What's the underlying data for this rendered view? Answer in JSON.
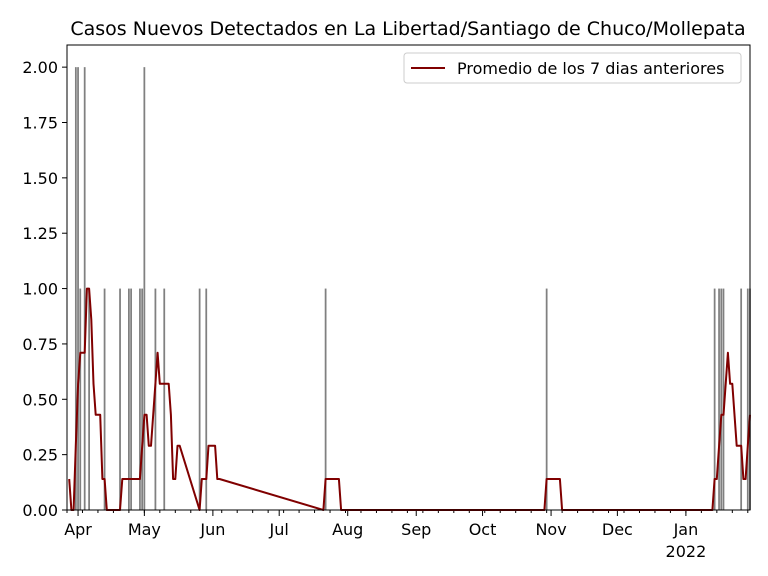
{
  "chart_data": {
    "type": "bar",
    "title": "Casos Nuevos Detectados en La Libertad/Santiago de Chuco/Mollepata",
    "xlabel": "",
    "ylabel": "",
    "ylim": [
      0,
      2.1
    ],
    "yticks": [
      "0.00",
      "0.25",
      "0.50",
      "0.75",
      "1.00",
      "1.25",
      "1.50",
      "1.75",
      "2.00"
    ],
    "xlim": [
      "2021-03-27",
      "2022-01-30"
    ],
    "xticks": [
      {
        "date": "2021-04-01",
        "label": "Apr"
      },
      {
        "date": "2021-05-01",
        "label": "May"
      },
      {
        "date": "2021-06-01",
        "label": "Jun"
      },
      {
        "date": "2021-07-01",
        "label": "Jul"
      },
      {
        "date": "2021-08-01",
        "label": "Aug"
      },
      {
        "date": "2021-09-01",
        "label": "Sep"
      },
      {
        "date": "2021-10-01",
        "label": "Oct"
      },
      {
        "date": "2021-11-01",
        "label": "Nov"
      },
      {
        "date": "2021-12-01",
        "label": "Dec"
      },
      {
        "date": "2022-01-01",
        "label": "Jan",
        "sublabel": "2022"
      }
    ],
    "legend_position": "top-right",
    "grid": false,
    "colors": {
      "bars": "#808080",
      "line": "#800000"
    },
    "series": [
      {
        "type": "bar",
        "x": [
          "2021-03-31",
          "2021-04-01",
          "2021-04-02",
          "2021-04-04",
          "2021-04-06",
          "2021-04-13",
          "2021-04-20",
          "2021-04-24",
          "2021-04-25",
          "2021-04-29",
          "2021-04-30",
          "2021-05-01",
          "2021-05-06",
          "2021-05-10",
          "2021-05-26",
          "2021-05-29",
          "2021-07-22",
          "2021-10-30",
          "2022-01-14",
          "2022-01-16",
          "2022-01-17",
          "2022-01-18",
          "2022-01-26",
          "2022-01-29",
          "2022-01-30"
        ],
        "values": [
          2,
          2,
          1,
          2,
          1,
          1,
          1,
          1,
          1,
          1,
          1,
          2,
          1,
          1,
          1,
          1,
          1,
          1,
          1,
          1,
          1,
          1,
          1,
          1,
          1
        ]
      },
      {
        "type": "line",
        "name": "Promedio de los 7 dias anteriores",
        "x": [
          "2021-03-28",
          "2021-03-29",
          "2021-03-30",
          "2021-03-31",
          "2021-04-01",
          "2021-04-02",
          "2021-04-03",
          "2021-04-04",
          "2021-04-05",
          "2021-04-06",
          "2021-04-07",
          "2021-04-08",
          "2021-04-09",
          "2021-04-10",
          "2021-04-11",
          "2021-04-12",
          "2021-04-13",
          "2021-04-14",
          "2021-04-20",
          "2021-04-21",
          "2021-04-23",
          "2021-04-24",
          "2021-04-25",
          "2021-04-26",
          "2021-04-27",
          "2021-04-28",
          "2021-04-29",
          "2021-04-30",
          "2021-05-01",
          "2021-05-02",
          "2021-05-03",
          "2021-05-04",
          "2021-05-05",
          "2021-05-06",
          "2021-05-07",
          "2021-05-08",
          "2021-05-09",
          "2021-05-10",
          "2021-05-11",
          "2021-05-12",
          "2021-05-13",
          "2021-05-14",
          "2021-05-15",
          "2021-05-16",
          "2021-05-17",
          "2021-05-26",
          "2021-05-27",
          "2021-05-28",
          "2021-05-29",
          "2021-05-30",
          "2021-05-31",
          "2021-06-01",
          "2021-06-02",
          "2021-06-03",
          "2021-06-04",
          "2021-07-21",
          "2021-07-22",
          "2021-07-28",
          "2021-07-29",
          "2021-10-29",
          "2021-10-30",
          "2021-11-05",
          "2021-11-06",
          "2022-01-13",
          "2022-01-14",
          "2022-01-15",
          "2022-01-16",
          "2022-01-17",
          "2022-01-18",
          "2022-01-19",
          "2022-01-20",
          "2022-01-21",
          "2022-01-22",
          "2022-01-23",
          "2022-01-24",
          "2022-01-25",
          "2022-01-26",
          "2022-01-27",
          "2022-01-28",
          "2022-01-29",
          "2022-01-30"
        ],
        "values": [
          0.14,
          0,
          0,
          0.29,
          0.57,
          0.71,
          0.71,
          0.71,
          1.0,
          1.0,
          0.86,
          0.57,
          0.43,
          0.43,
          0.43,
          0.14,
          0.14,
          0,
          0,
          0.14,
          0.14,
          0.14,
          0.14,
          0.14,
          0.14,
          0.14,
          0.14,
          0.29,
          0.43,
          0.43,
          0.29,
          0.29,
          0.43,
          0.57,
          0.71,
          0.57,
          0.57,
          0.57,
          0.57,
          0.57,
          0.43,
          0.14,
          0.14,
          0.29,
          0.29,
          0,
          0.14,
          0.14,
          0.14,
          0.29,
          0.29,
          0.29,
          0.29,
          0.14,
          0.14,
          0,
          0.14,
          0.14,
          0,
          0,
          0.14,
          0.14,
          0,
          0,
          0.14,
          0.14,
          0.29,
          0.43,
          0.43,
          0.57,
          0.71,
          0.57,
          0.57,
          0.43,
          0.29,
          0.29,
          0.29,
          0.14,
          0.14,
          0.29,
          0.43
        ]
      }
    ]
  }
}
